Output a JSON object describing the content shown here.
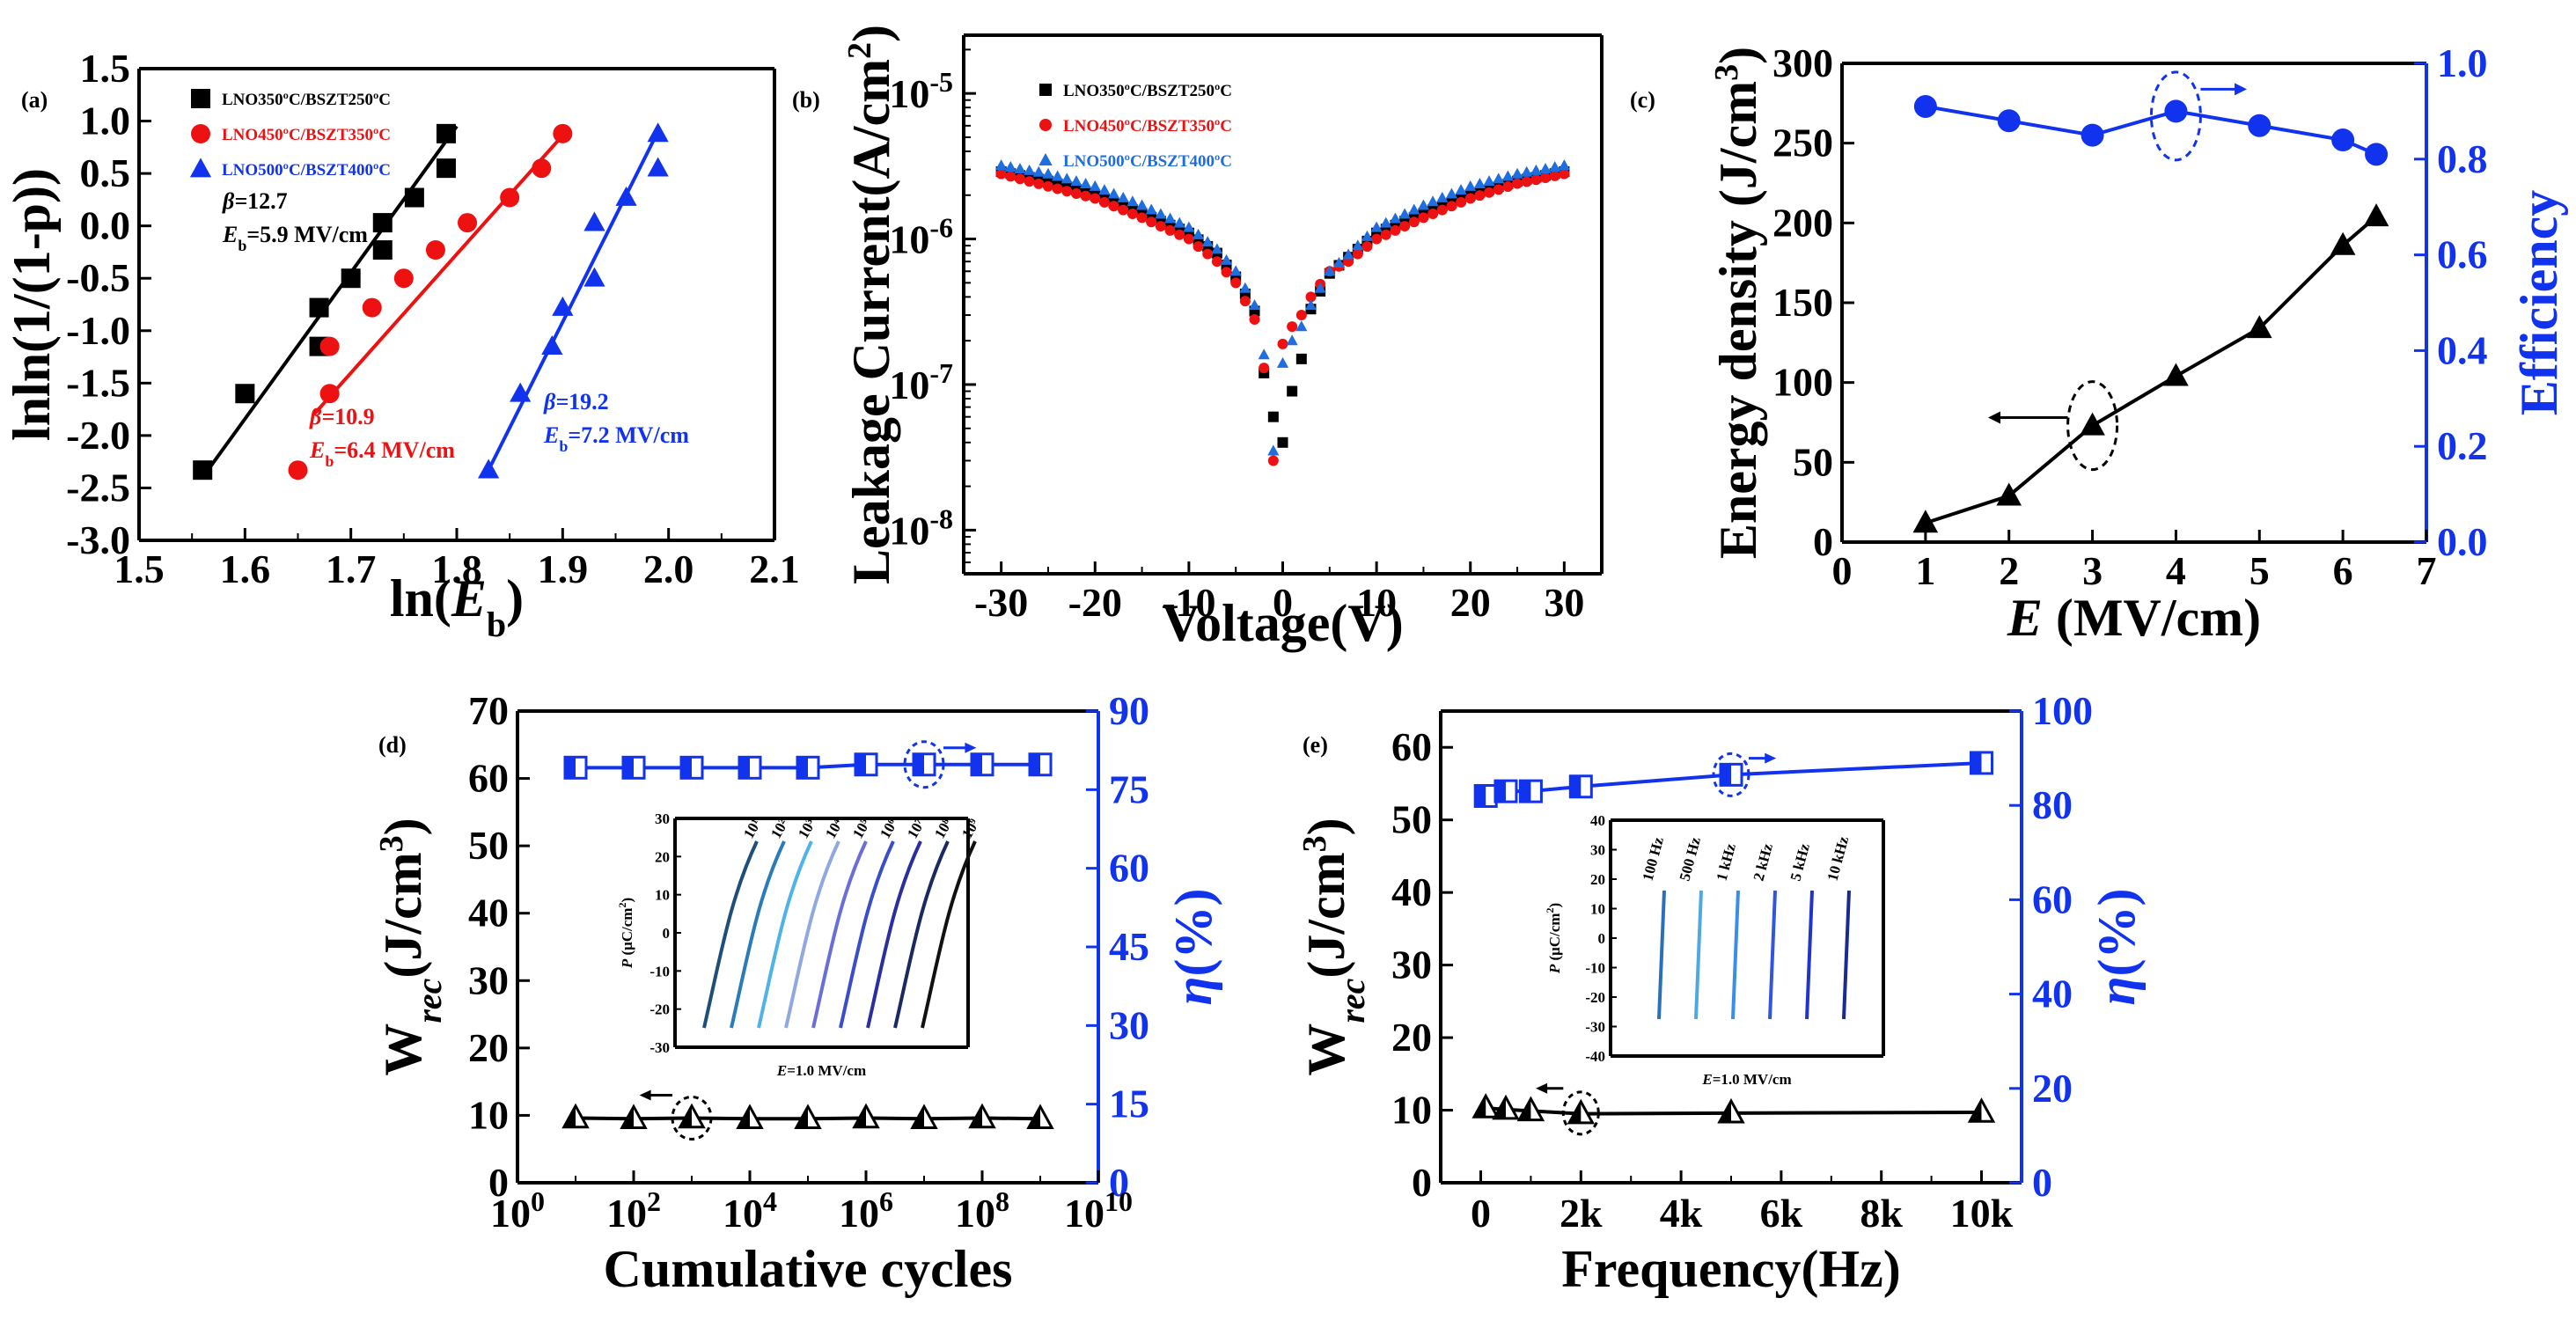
{
  "colors": {
    "black": "#000000",
    "red": "#ee1111",
    "blue": "#1133ee",
    "azure": "#1e6ee0"
  },
  "chart_data": [
    {
      "type": "scatter",
      "panel": "(a)",
      "xlabel": "ln(Eb)",
      "ylabel": "lnln(1/(1-p))",
      "xlim": [
        1.5,
        2.1
      ],
      "ylim": [
        -3.0,
        1.5
      ],
      "xticks": [
        "1.5",
        "1.6",
        "1.7",
        "1.8",
        "1.9",
        "2.0",
        "2.1"
      ],
      "yticks": [
        "-3.0",
        "-2.5",
        "-2.0",
        "-1.5",
        "-1.0",
        "-0.5",
        "0.0",
        "0.5",
        "1.0",
        "1.5"
      ],
      "legend_position": "top-left",
      "series": [
        {
          "name": "LNO350ºC/BSZT250ºC",
          "color": "#000000",
          "marker": "square",
          "x": [
            1.56,
            1.6,
            1.67,
            1.67,
            1.7,
            1.73,
            1.73,
            1.76,
            1.79,
            1.79
          ],
          "y": [
            -2.33,
            -1.6,
            -1.15,
            -0.78,
            -0.5,
            -0.23,
            0.03,
            0.27,
            0.55,
            0.88
          ],
          "fit": [
            [
              1.565,
              -2.33
            ],
            [
              1.8,
              0.95
            ]
          ],
          "beta": "12.7",
          "eb": "5.9 MV/cm"
        },
        {
          "name": "LNO450ºC/BSZT350ºC",
          "color": "#ee1111",
          "marker": "circle",
          "x": [
            1.65,
            1.68,
            1.68,
            1.72,
            1.75,
            1.78,
            1.81,
            1.85,
            1.88,
            1.9
          ],
          "y": [
            -2.33,
            -1.6,
            -1.15,
            -0.78,
            -0.5,
            -0.23,
            0.03,
            0.27,
            0.55,
            0.88
          ],
          "fit": [
            [
              1.665,
              -1.8
            ],
            [
              1.905,
              0.92
            ]
          ],
          "beta": "10.9",
          "eb": "6.4 MV/cm"
        },
        {
          "name": "LNO500ºC/BSZT400ºC",
          "color": "#1133ee",
          "marker": "triangle",
          "x": [
            1.83,
            1.86,
            1.89,
            1.9,
            1.93,
            1.93,
            1.96,
            1.99,
            1.99
          ],
          "y": [
            -2.33,
            -1.6,
            -1.15,
            -0.78,
            -0.5,
            0.03,
            0.27,
            0.55,
            0.88
          ],
          "fit": [
            [
              1.83,
              -2.33
            ],
            [
              1.99,
              0.9
            ]
          ],
          "beta": "19.2",
          "eb": "7.2 MV/cm"
        }
      ],
      "annotations": {
        "beta_prefix": "β=",
        "eb_prefix": "E",
        "eb_sub": "b",
        "eb_eq": "="
      }
    },
    {
      "type": "scatter",
      "panel": "(b)",
      "xlabel": "Voltage(V)",
      "ylabel": "Leakage Current(A/cm2)",
      "xlim": [
        -34,
        34
      ],
      "ylim_log10": [
        -8.3,
        -4.6
      ],
      "xticks": [
        "-30",
        "-20",
        "-10",
        "0",
        "10",
        "20",
        "30"
      ],
      "ytick_base": "10",
      "ytick_exponents": [
        "-8",
        "-7",
        "-6",
        "-5"
      ],
      "legend_position": "top-right",
      "series": [
        {
          "name": "LNO350ºC/BSZT250ºC",
          "color": "#000000",
          "marker": "square",
          "x": [
            -30,
            -25,
            -20,
            -15,
            -10,
            -7,
            -5,
            -3,
            -2,
            -1,
            0,
            1,
            2,
            3,
            5,
            7,
            10,
            15,
            20,
            25,
            30
          ],
          "y": [
            2.9e-06,
            2.5e-06,
            2e-06,
            1.5e-06,
            1.1e-06,
            8e-07,
            5.5e-07,
            3.2e-07,
            1.2e-07,
            6e-08,
            4e-08,
            9e-08,
            1.5e-07,
            3.3e-07,
            5.8e-07,
            7.5e-07,
            1.1e-06,
            1.5e-06,
            2e-06,
            2.5e-06,
            2.9e-06
          ]
        },
        {
          "name": "LNO450ºC/BSZT350ºC",
          "color": "#ee1111",
          "marker": "circle",
          "x": [
            -30,
            -25,
            -20,
            -15,
            -10,
            -7,
            -5,
            -3,
            -2,
            -1,
            0,
            1,
            2,
            3,
            5,
            7,
            10,
            15,
            20,
            25,
            30
          ],
          "y": [
            2.8e-06,
            2.3e-06,
            1.9e-06,
            1.4e-06,
            1e-06,
            7e-07,
            5e-07,
            2.8e-07,
            1.3e-07,
            3e-08,
            1.9e-07,
            2.5e-07,
            3e-07,
            4e-07,
            6e-07,
            7e-07,
            1e-06,
            1.4e-06,
            1.9e-06,
            2.4e-06,
            2.8e-06
          ]
        },
        {
          "name": "LNO500ºC/BSZT400ºC",
          "color": "#1e6ee0",
          "marker": "triangle",
          "x": [
            -30,
            -25,
            -20,
            -15,
            -10,
            -7,
            -5,
            -3,
            -2,
            -1,
            0,
            1,
            2,
            3,
            5,
            7,
            10,
            15,
            20,
            25,
            30
          ],
          "y": [
            3.2e-06,
            2.8e-06,
            2.3e-06,
            1.7e-06,
            1.2e-06,
            8.5e-07,
            6e-07,
            3.5e-07,
            1.6e-07,
            3.5e-08,
            1.4e-07,
            2e-07,
            2.5e-07,
            3.5e-07,
            6e-07,
            7.8e-07,
            1.2e-06,
            1.7e-06,
            2.3e-06,
            2.8e-06,
            3.2e-06
          ]
        }
      ]
    },
    {
      "type": "line",
      "panel": "(c)",
      "xlabel": "E (MV/cm)",
      "ylabel_left": "Energy density (J/cm3)",
      "ylabel_right": "Efficiency",
      "xlim": [
        0,
        7
      ],
      "ylim_left": [
        0,
        300
      ],
      "ylim_right": [
        0,
        1.0
      ],
      "xticks": [
        "0",
        "1",
        "2",
        "3",
        "4",
        "5",
        "6",
        "7"
      ],
      "yticks_left": [
        "0",
        "50",
        "100",
        "150",
        "200",
        "250",
        "300"
      ],
      "yticks_right": [
        "0.0",
        "0.2",
        "0.4",
        "0.6",
        "0.8",
        "1.0"
      ],
      "series": [
        {
          "name": "Energy density",
          "axis": "left",
          "color": "#000000",
          "marker": "triangle",
          "x": [
            1,
            2,
            3,
            4,
            5,
            6,
            6.4
          ],
          "y": [
            12,
            29,
            73,
            104,
            134,
            186,
            204
          ]
        },
        {
          "name": "Efficiency",
          "axis": "right",
          "color": "#1133ee",
          "marker": "circle",
          "x": [
            1,
            2,
            3,
            4,
            5,
            6,
            6.4
          ],
          "y": [
            0.91,
            0.88,
            0.85,
            0.9,
            0.87,
            0.84,
            0.81
          ]
        }
      ]
    },
    {
      "type": "line",
      "panel": "(d)",
      "xlabel": "Cumulative cycles",
      "ylabel_left": "Wrec(J/cm3)",
      "ylabel_right": "η(%)",
      "xlim_log10": [
        0,
        10
      ],
      "ylim_left": [
        0,
        70
      ],
      "ylim_right": [
        0,
        90
      ],
      "xtick_base": "10",
      "xtick_exponents": [
        "0",
        "2",
        "4",
        "6",
        "8",
        "10"
      ],
      "yticks_left": [
        "0",
        "10",
        "20",
        "30",
        "40",
        "50",
        "60",
        "70"
      ],
      "yticks_right": [
        "0",
        "15",
        "30",
        "45",
        "60",
        "75",
        "90"
      ],
      "series": [
        {
          "name": "Wrec",
          "axis": "left",
          "color": "#000000",
          "marker": "half-triangle",
          "x_log10": [
            1,
            2,
            3,
            4,
            5,
            6,
            7,
            8,
            9
          ],
          "y": [
            9.6,
            9.5,
            9.6,
            9.5,
            9.5,
            9.6,
            9.5,
            9.6,
            9.5
          ]
        },
        {
          "name": "η",
          "axis": "right",
          "color": "#1133ee",
          "marker": "half-square",
          "x_log10": [
            1,
            2,
            3,
            4,
            5,
            6,
            7,
            8,
            9
          ],
          "y": [
            79.2,
            79.2,
            79.2,
            79.2,
            79.2,
            79.8,
            79.8,
            79.8,
            79.8
          ]
        }
      ],
      "inset": {
        "ylabel": "P (μC/cm2)",
        "xlabel": "E=1.0 MV/cm",
        "yticks": [
          "30",
          "20",
          "10",
          "0",
          "-10",
          "-20",
          "-30"
        ],
        "loop_labels": [
          "10¹",
          "10²",
          "10³",
          "10⁴",
          "10⁵",
          "10⁶",
          "10⁷",
          "10⁸",
          "10⁹"
        ],
        "loop_colors": [
          "#1f4e79",
          "#2b7bb8",
          "#4fb3e8",
          "#8fa8e0",
          "#6a6fd8",
          "#3a4ec8",
          "#2a2fa0",
          "#1a2a60",
          "#111111"
        ]
      }
    },
    {
      "type": "line",
      "panel": "(e)",
      "xlabel": "Frequency(Hz)",
      "ylabel_left": "Wrec(J/cm3)",
      "ylabel_right": "η(%)",
      "xlim": [
        -800,
        10800
      ],
      "ylim_left": [
        0,
        65
      ],
      "ylim_right": [
        0,
        100
      ],
      "xticks": [
        "0",
        "2k",
        "4k",
        "6k",
        "8k",
        "10k"
      ],
      "yticks_left": [
        "0",
        "10",
        "20",
        "30",
        "40",
        "50",
        "60"
      ],
      "yticks_right": [
        "0",
        "20",
        "40",
        "60",
        "80",
        "100"
      ],
      "series": [
        {
          "name": "Wrec",
          "axis": "left",
          "color": "#000000",
          "marker": "half-triangle",
          "x": [
            100,
            500,
            1000,
            2000,
            5000,
            10000
          ],
          "y": [
            10.3,
            10.1,
            9.9,
            9.5,
            9.6,
            9.7
          ]
        },
        {
          "name": "η",
          "axis": "right",
          "color": "#1133ee",
          "marker": "half-square",
          "x": [
            100,
            500,
            1000,
            2000,
            5000,
            10000
          ],
          "y": [
            82,
            83,
            83,
            84,
            86.5,
            89
          ]
        }
      ],
      "inset": {
        "ylabel": "P (μC/cm2)",
        "xlabel": "E=1.0 MV/cm",
        "yticks": [
          "40",
          "30",
          "20",
          "10",
          "0",
          "-10",
          "-20",
          "-30",
          "-40"
        ],
        "loop_labels": [
          "100 Hz",
          "500 Hz",
          "1 kHz",
          "2 kHz",
          "5 kHz",
          "10 kHz"
        ],
        "loop_colors": [
          "#2b6fb8",
          "#4fa8e0",
          "#3a8ee8",
          "#3355dd",
          "#2233cc",
          "#1a2a90"
        ]
      }
    }
  ]
}
